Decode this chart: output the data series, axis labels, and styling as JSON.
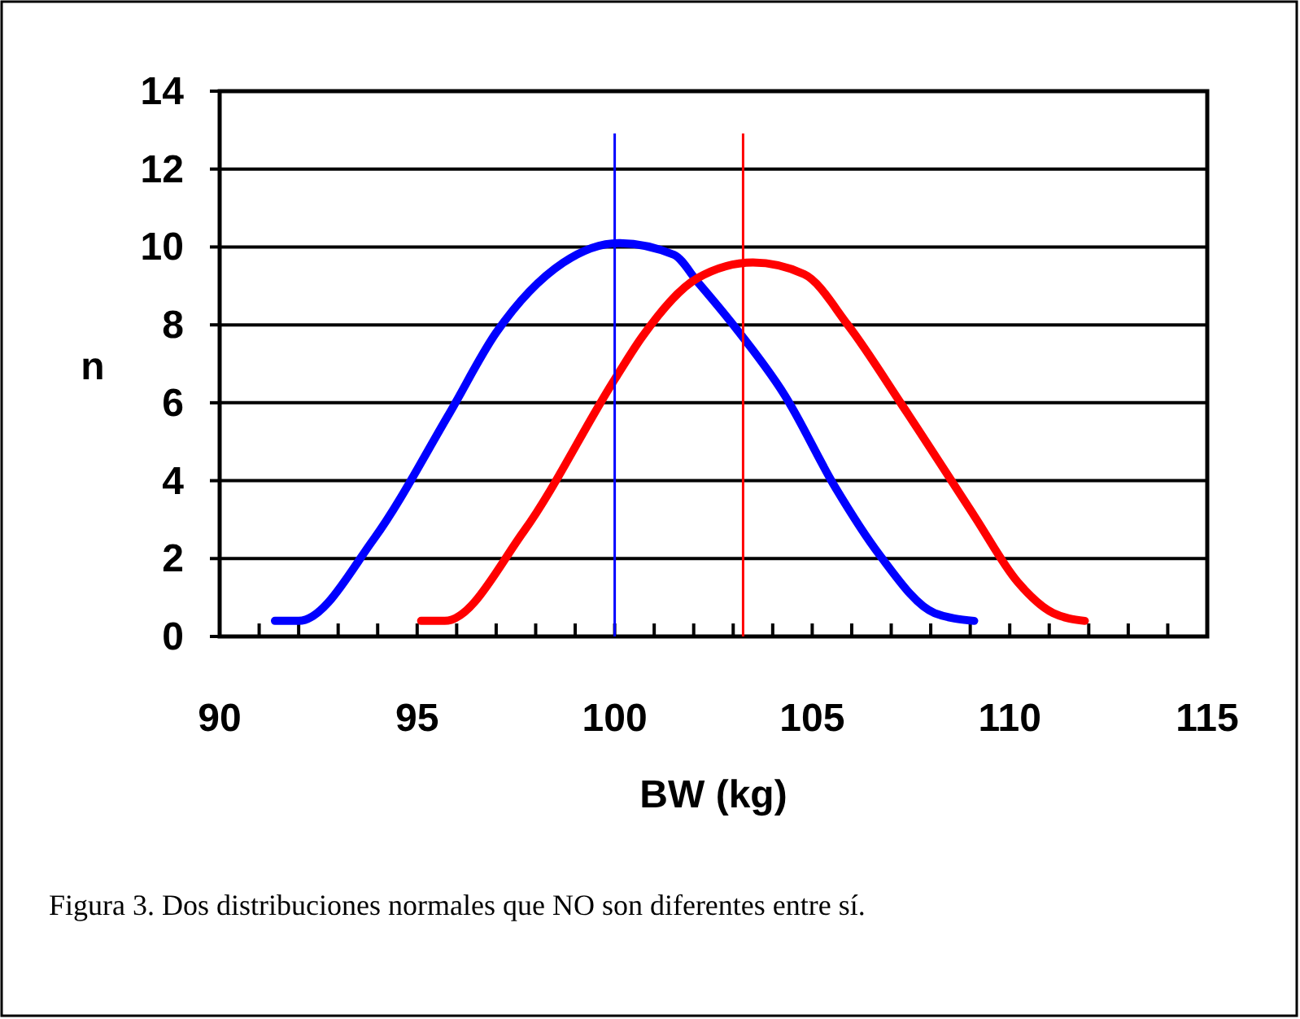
{
  "chart_data": {
    "type": "line",
    "xlabel": "BW (kg)",
    "ylabel": "n",
    "xlim": [
      90,
      115
    ],
    "ylim": [
      0,
      14
    ],
    "xticks": [
      90,
      {
        "value": 91,
        "label": null
      },
      {
        "value": 92,
        "label": null
      },
      {
        "value": 93,
        "label": null
      },
      {
        "value": 94,
        "label": null
      },
      95,
      {
        "value": 96,
        "label": null
      },
      {
        "value": 97,
        "label": null
      },
      {
        "value": 98,
        "label": null
      },
      {
        "value": 99,
        "label": null
      },
      100,
      {
        "value": 101,
        "label": null
      },
      {
        "value": 102,
        "label": null
      },
      {
        "value": 103,
        "label": null
      },
      {
        "value": 104,
        "label": null
      },
      105,
      {
        "value": 106,
        "label": null
      },
      {
        "value": 107,
        "label": null
      },
      {
        "value": 108,
        "label": null
      },
      {
        "value": 109,
        "label": null
      },
      110,
      {
        "value": 111,
        "label": null
      },
      {
        "value": 112,
        "label": null
      },
      {
        "value": 113,
        "label": null
      },
      {
        "value": 114,
        "label": null
      },
      115
    ],
    "yticks": [
      0,
      2,
      4,
      6,
      8,
      10,
      12,
      14
    ],
    "grid": "y",
    "marker": "none",
    "line_style": "solid",
    "series": [
      {
        "color": "#0000ff",
        "x": [
          91.4,
          92.0,
          93.9,
          95.8,
          97.0,
          98.7,
          100.1,
          101.5,
          102.1,
          103.0,
          104.3,
          105.6,
          106.7,
          108.1,
          109.1
        ],
        "values": [
          0.4,
          0.4,
          2.5,
          5.7,
          7.8,
          9.6,
          10.1,
          9.8,
          9.1,
          8.0,
          6.2,
          3.8,
          2.1,
          0.6,
          0.4
        ]
      },
      {
        "color": "#ff0000",
        "x": [
          95.1,
          95.7,
          97.7,
          100.0,
          100.7,
          102.1,
          103.5,
          104.8,
          105.9,
          107.3,
          109.1,
          110.2,
          111.1,
          111.9
        ],
        "values": [
          0.4,
          0.4,
          2.7,
          6.6,
          7.7,
          9.2,
          9.6,
          9.3,
          8.0,
          5.9,
          3.1,
          1.4,
          0.6,
          0.4
        ]
      }
    ],
    "ref_lines": [
      {
        "axis": "x",
        "value": 100,
        "color": "#0000ff"
      },
      {
        "axis": "x",
        "value": 103.25,
        "color": "#ff0000"
      }
    ],
    "annotations": [
      "Figura 3. Dos distribuciones normales que NO son diferentes entre sí."
    ]
  }
}
